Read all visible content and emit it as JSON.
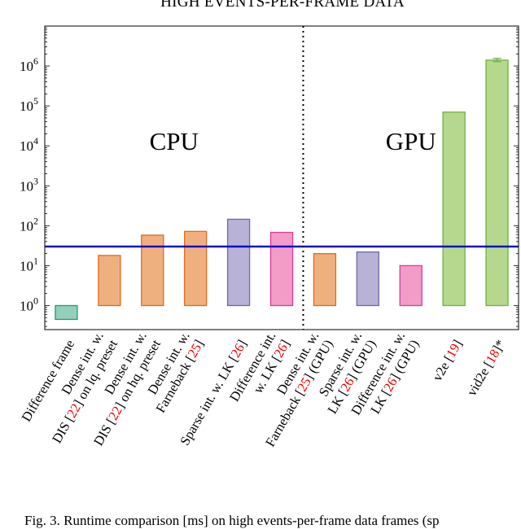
{
  "chart_data": {
    "type": "bar",
    "title": "HIGH EVENTS-PER-FRAME DATA",
    "scale": "log",
    "ylim": [
      0.25,
      10000000
    ],
    "yticks": [
      {
        "value": 1,
        "label": "10",
        "exp": "0"
      },
      {
        "value": 10,
        "label": "10",
        "exp": "1"
      },
      {
        "value": 100,
        "label": "10",
        "exp": "2"
      },
      {
        "value": 1000,
        "label": "10",
        "exp": "3"
      },
      {
        "value": 10000,
        "label": "10",
        "exp": "4"
      },
      {
        "value": 100000,
        "label": "10",
        "exp": "5"
      },
      {
        "value": 1000000,
        "label": "10",
        "exp": "6"
      }
    ],
    "grid": false,
    "regions": [
      {
        "label": "CPU",
        "from": 0,
        "to": 6
      },
      {
        "label": "GPU",
        "from": 6,
        "to": 11
      }
    ],
    "reference_line": {
      "value": 30
    },
    "categories": [
      {
        "name": "Difference frame",
        "lines": [
          [
            {
              "t": "Difference frame"
            }
          ]
        ],
        "base": 0.45,
        "value": 1.0,
        "fill": "#93cfbb",
        "stroke": "#1f9d6e"
      },
      {
        "name": "Dense int. w. DIS [22] on lq. preset",
        "lines": [
          [
            {
              "t": "Dense int. w."
            }
          ],
          [
            {
              "t": "DIS ["
            },
            {
              "t": "22",
              "ref": true
            },
            {
              "t": "] on lq. preset"
            }
          ]
        ],
        "base": 1.0,
        "value": 18,
        "fill": "#efb07f",
        "stroke": "#e06a1a"
      },
      {
        "name": "Dense int. w. DIS [22] on hq. preset",
        "lines": [
          [
            {
              "t": "Dense int. w."
            }
          ],
          [
            {
              "t": "DIS ["
            },
            {
              "t": "22",
              "ref": true
            },
            {
              "t": "] on hq. preset"
            }
          ]
        ],
        "base": 1.0,
        "value": 58,
        "fill": "#efb07f",
        "stroke": "#e06a1a"
      },
      {
        "name": "Dense int. w. Farneback [25]",
        "lines": [
          [
            {
              "t": "Dense int. w."
            }
          ],
          [
            {
              "t": "Farneback ["
            },
            {
              "t": "25",
              "ref": true
            },
            {
              "t": "]"
            }
          ]
        ],
        "base": 1.0,
        "value": 72,
        "fill": "#efb07f",
        "stroke": "#e06a1a"
      },
      {
        "name": "Sparse int. w. LK [26]",
        "lines": [
          [
            {
              "t": "Sparse int. w. LK ["
            },
            {
              "t": "26",
              "ref": true
            },
            {
              "t": "]"
            }
          ]
        ],
        "base": 1.0,
        "value": 145,
        "fill": "#b8b3d6",
        "stroke": "#7066ac"
      },
      {
        "name": "Difference int. w. LK [26]",
        "lines": [
          [
            {
              "t": "Difference int."
            }
          ],
          [
            {
              "t": "w. LK ["
            },
            {
              "t": "26",
              "ref": true
            },
            {
              "t": "]"
            }
          ]
        ],
        "base": 1.0,
        "value": 68,
        "fill": "#f39cc8",
        "stroke": "#e0389a"
      },
      {
        "name": "Dense int. w. Farneback [25] (GPU)",
        "lines": [
          [
            {
              "t": "Dense int. w."
            }
          ],
          [
            {
              "t": "Farneback ["
            },
            {
              "t": "25",
              "ref": true
            },
            {
              "t": "] (GPU)"
            }
          ]
        ],
        "base": 1.0,
        "value": 20,
        "fill": "#efb07f",
        "stroke": "#e06a1a"
      },
      {
        "name": "Sparse int. w. LK [26] (GPU)",
        "lines": [
          [
            {
              "t": "Sparse int. w."
            }
          ],
          [
            {
              "t": "LK ["
            },
            {
              "t": "26",
              "ref": true
            },
            {
              "t": "] (GPU)"
            }
          ]
        ],
        "base": 1.0,
        "value": 22,
        "fill": "#b8b3d6",
        "stroke": "#7066ac"
      },
      {
        "name": "Difference int. w. LK [26] (GPU)",
        "lines": [
          [
            {
              "t": "Difference int. w."
            }
          ],
          [
            {
              "t": "LK ["
            },
            {
              "t": "26",
              "ref": true
            },
            {
              "t": "] (GPU)"
            }
          ]
        ],
        "base": 1.0,
        "value": 10,
        "fill": "#f39cc8",
        "stroke": "#e0389a"
      },
      {
        "name": "v2e [19]",
        "lines": [
          [
            {
              "t": "v2e ["
            },
            {
              "t": "19",
              "ref": true
            },
            {
              "t": "]"
            }
          ]
        ],
        "base": 1.0,
        "value": 70000,
        "fill": "#b5d88e",
        "stroke": "#6db33f"
      },
      {
        "name": "vid2e [18]*",
        "lines": [
          [
            {
              "t": "vid2e ["
            },
            {
              "t": "18",
              "ref": true
            },
            {
              "t": "]*"
            }
          ]
        ],
        "base": 1.0,
        "value": 1400000,
        "fill": "#b5d88e",
        "stroke": "#6db33f",
        "error": [
          1280000,
          1550000
        ]
      }
    ]
  },
  "caption": "Fig. 3.   Runtime comparison [ms] on high events-per-frame data frames (sp"
}
